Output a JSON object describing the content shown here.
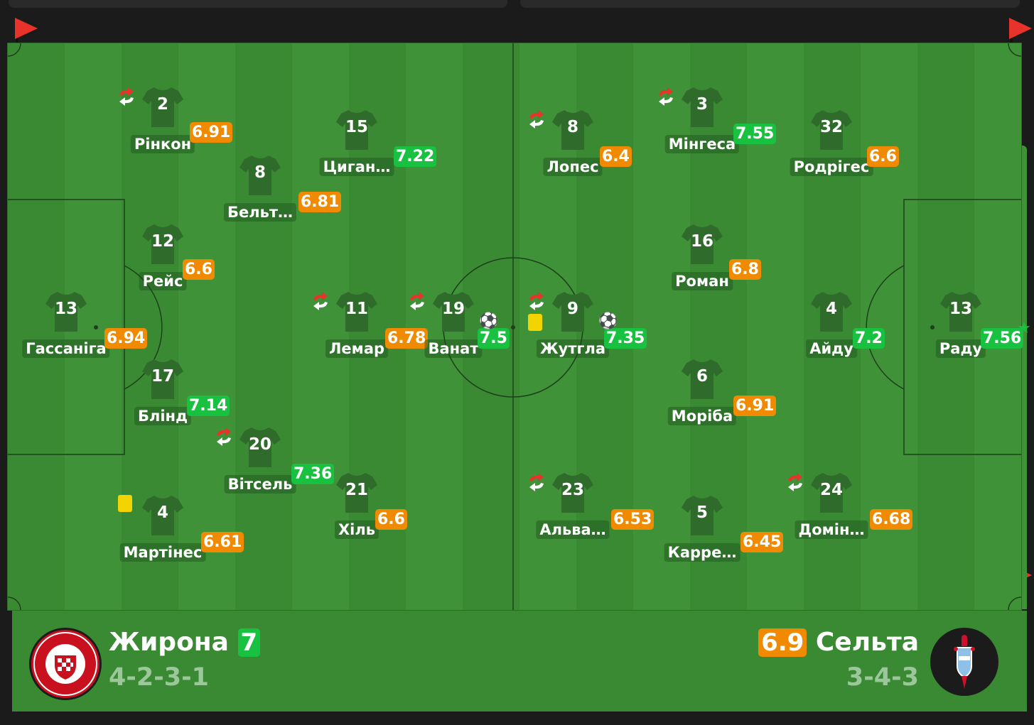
{
  "home": {
    "name": "Жирона",
    "rating": "7",
    "formation": "4-2-3-1",
    "players": [
      {
        "number": "13",
        "name": "Гассаніга",
        "rating": "6.94",
        "rating_color": "orange"
      },
      {
        "number": "2",
        "name": "Рінкон",
        "rating": "6.91",
        "rating_color": "orange",
        "sub": true
      },
      {
        "number": "12",
        "name": "Рейс",
        "rating": "6.6",
        "rating_color": "orange"
      },
      {
        "number": "17",
        "name": "Блінд",
        "rating": "7.14",
        "rating_color": "green"
      },
      {
        "number": "4",
        "name": "Мартінес",
        "rating": "6.61",
        "rating_color": "orange",
        "yellow_card": true
      },
      {
        "number": "8",
        "name": "Бельт…",
        "rating": "6.81",
        "rating_color": "orange"
      },
      {
        "number": "20",
        "name": "Вітсель",
        "rating": "7.36",
        "rating_color": "green",
        "sub": true
      },
      {
        "number": "15",
        "name": "Циган…",
        "rating": "7.22",
        "rating_color": "green"
      },
      {
        "number": "11",
        "name": "Лемар",
        "rating": "6.78",
        "rating_color": "orange",
        "sub": true
      },
      {
        "number": "21",
        "name": "Хіль",
        "rating": "6.6",
        "rating_color": "orange"
      },
      {
        "number": "19",
        "name": "Ванат",
        "rating": "7.5",
        "rating_color": "green",
        "sub": true,
        "goal": true
      }
    ]
  },
  "away": {
    "name": "Сельта",
    "rating": "6.9",
    "formation": "3-4-3",
    "players": [
      {
        "number": "9",
        "name": "Жутгла",
        "rating": "7.35",
        "rating_color": "green",
        "sub": true,
        "goal": true,
        "yellow_card": true
      },
      {
        "number": "8",
        "name": "Лопес",
        "rating": "6.4",
        "rating_color": "orange",
        "sub": true
      },
      {
        "number": "23",
        "name": "Альва…",
        "rating": "6.53",
        "rating_color": "orange",
        "sub": true
      },
      {
        "number": "3",
        "name": "Мінгеса",
        "rating": "7.55",
        "rating_color": "green",
        "sub": true
      },
      {
        "number": "16",
        "name": "Роман",
        "rating": "6.8",
        "rating_color": "orange"
      },
      {
        "number": "6",
        "name": "Моріба",
        "rating": "6.91",
        "rating_color": "orange"
      },
      {
        "number": "5",
        "name": "Карре…",
        "rating": "6.45",
        "rating_color": "orange"
      },
      {
        "number": "32",
        "name": "Родрігес",
        "rating": "6.6",
        "rating_color": "orange"
      },
      {
        "number": "4",
        "name": "Айду",
        "rating": "7.2",
        "rating_color": "green"
      },
      {
        "number": "24",
        "name": "Домін…",
        "rating": "6.68",
        "rating_color": "orange",
        "sub": true
      },
      {
        "number": "13",
        "name": "Раду",
        "rating": "7.56",
        "rating_color": "green",
        "star": true
      }
    ]
  },
  "colors": {
    "rating_orange": "#f08a00",
    "rating_green": "#19c141",
    "pitch": "#3a8a33",
    "shirt": "#2f6b2a"
  },
  "icons": [
    "corner-flag-icon",
    "substitution-icon",
    "yellow-card-icon",
    "ball-icon",
    "star-icon",
    "girona-crest-icon",
    "celta-crest-icon"
  ]
}
